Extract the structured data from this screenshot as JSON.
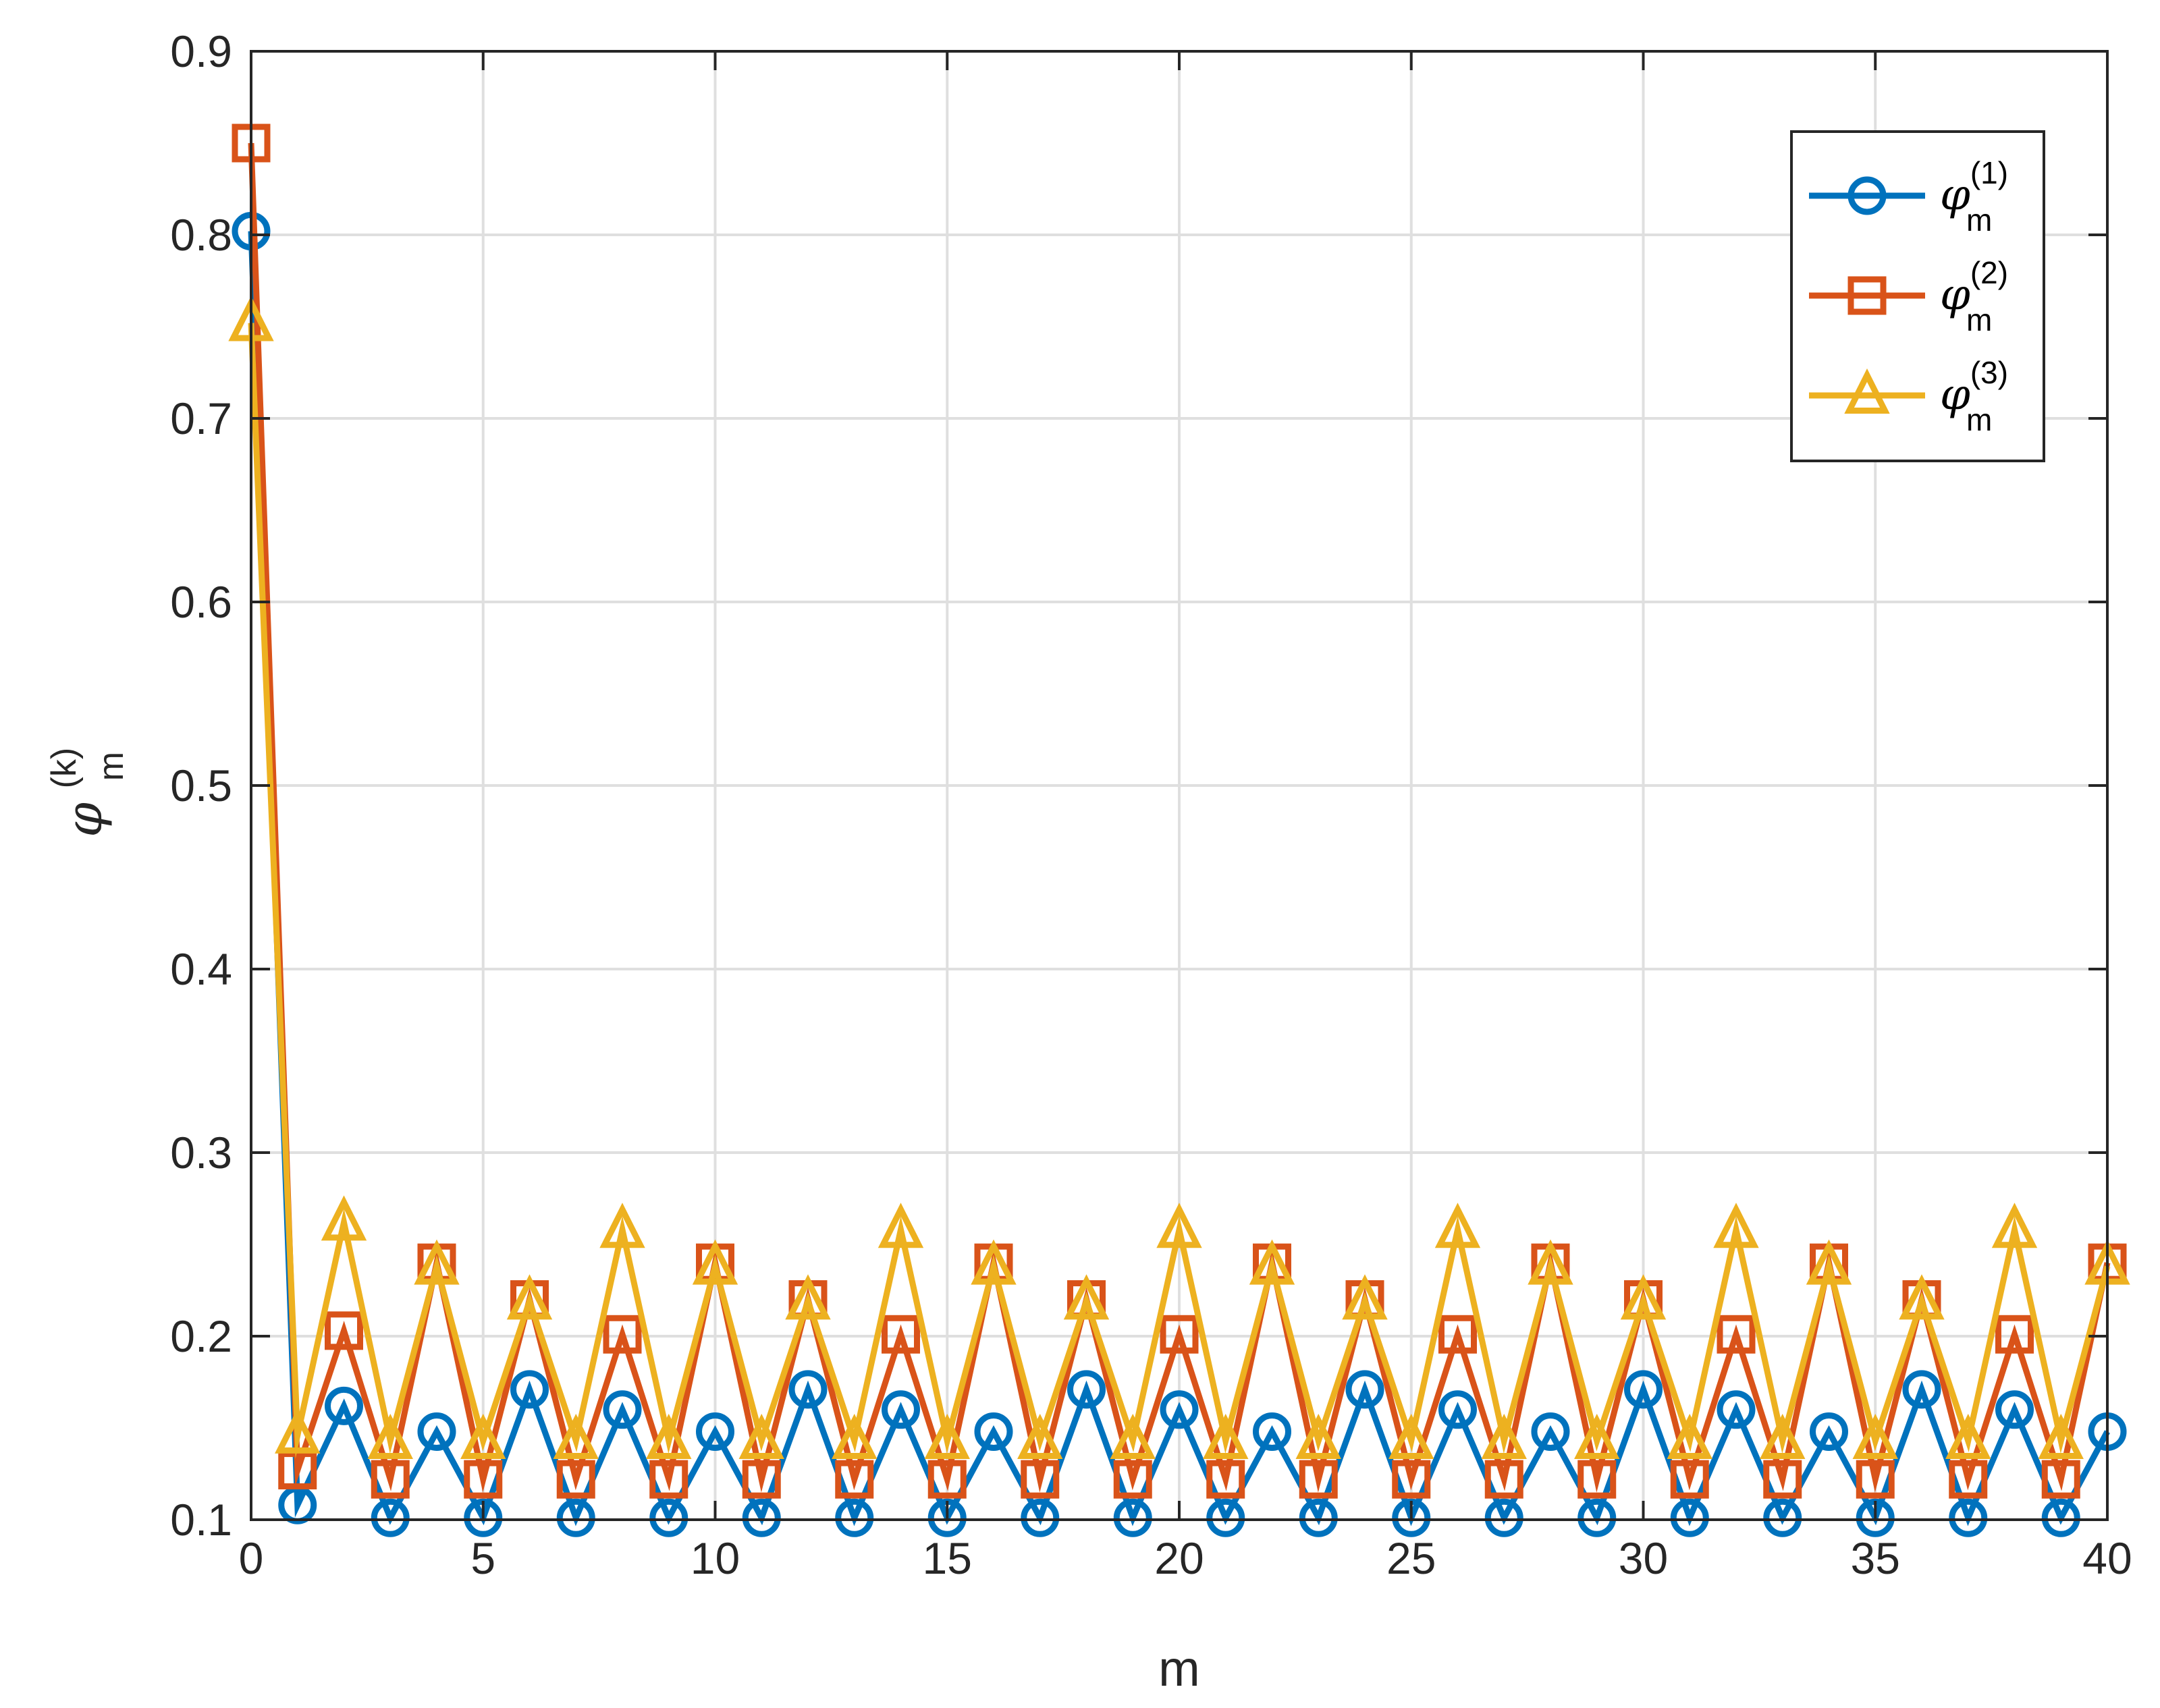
{
  "chart_data": {
    "type": "line",
    "x": [
      0,
      1,
      2,
      3,
      4,
      5,
      6,
      7,
      8,
      9,
      10,
      11,
      12,
      13,
      14,
      15,
      16,
      17,
      18,
      19,
      20,
      21,
      22,
      23,
      24,
      25,
      26,
      27,
      28,
      29,
      30,
      31,
      32,
      33,
      34,
      35,
      36,
      37,
      38,
      39,
      40
    ],
    "series": [
      {
        "name": "φ_m^(1)",
        "name_symbol": "φ",
        "name_sub": "m",
        "name_sup": "(1)",
        "marker": "circle",
        "color": "#0072BD",
        "values": [
          0.802,
          0.108,
          0.162,
          0.101,
          0.148,
          0.101,
          0.171,
          0.101,
          0.16,
          0.101,
          0.148,
          0.101,
          0.171,
          0.101,
          0.16,
          0.101,
          0.148,
          0.101,
          0.171,
          0.101,
          0.16,
          0.101,
          0.148,
          0.101,
          0.171,
          0.101,
          0.16,
          0.101,
          0.148,
          0.101,
          0.171,
          0.101,
          0.16,
          0.101,
          0.148,
          0.101,
          0.171,
          0.101,
          0.16,
          0.101,
          0.148
        ]
      },
      {
        "name": "φ_m^(2)",
        "name_symbol": "φ",
        "name_sub": "m",
        "name_sup": "(2)",
        "marker": "square",
        "color": "#D95319",
        "values": [
          0.85,
          0.127,
          0.203,
          0.122,
          0.24,
          0.122,
          0.22,
          0.122,
          0.201,
          0.122,
          0.24,
          0.122,
          0.22,
          0.122,
          0.201,
          0.122,
          0.24,
          0.122,
          0.22,
          0.122,
          0.201,
          0.122,
          0.24,
          0.122,
          0.22,
          0.122,
          0.201,
          0.122,
          0.24,
          0.122,
          0.22,
          0.122,
          0.201,
          0.122,
          0.24,
          0.122,
          0.22,
          0.122,
          0.201,
          0.122,
          0.24
        ]
      },
      {
        "name": "φ_m^(3)",
        "name_symbol": "φ",
        "name_sub": "m",
        "name_sup": "(3)",
        "marker": "triangle",
        "color": "#EDB120",
        "values": [
          0.752,
          0.146,
          0.262,
          0.143,
          0.238,
          0.143,
          0.219,
          0.143,
          0.258,
          0.143,
          0.238,
          0.143,
          0.219,
          0.143,
          0.258,
          0.143,
          0.238,
          0.143,
          0.219,
          0.143,
          0.258,
          0.143,
          0.238,
          0.143,
          0.219,
          0.143,
          0.258,
          0.143,
          0.238,
          0.143,
          0.219,
          0.143,
          0.258,
          0.143,
          0.238,
          0.143,
          0.219,
          0.143,
          0.258,
          0.143,
          0.238
        ]
      }
    ],
    "xlabel": "m",
    "ylabel": {
      "symbol": "φ",
      "sub": "m",
      "sup": "(k)"
    },
    "xlim": [
      0,
      40
    ],
    "ylim": [
      0.1,
      0.9
    ],
    "xticks": [
      0,
      5,
      10,
      15,
      20,
      25,
      30,
      35,
      40
    ],
    "yticks": [
      0.1,
      0.2,
      0.3,
      0.4,
      0.5,
      0.6,
      0.7,
      0.8,
      0.9
    ],
    "xtick_labels": [
      "0",
      "5",
      "10",
      "15",
      "20",
      "25",
      "30",
      "35",
      "40"
    ],
    "ytick_labels": [
      "0.1",
      "0.2",
      "0.3",
      "0.4",
      "0.5",
      "0.6",
      "0.7",
      "0.8",
      "0.9"
    ],
    "grid": true,
    "legend": "top-right"
  }
}
